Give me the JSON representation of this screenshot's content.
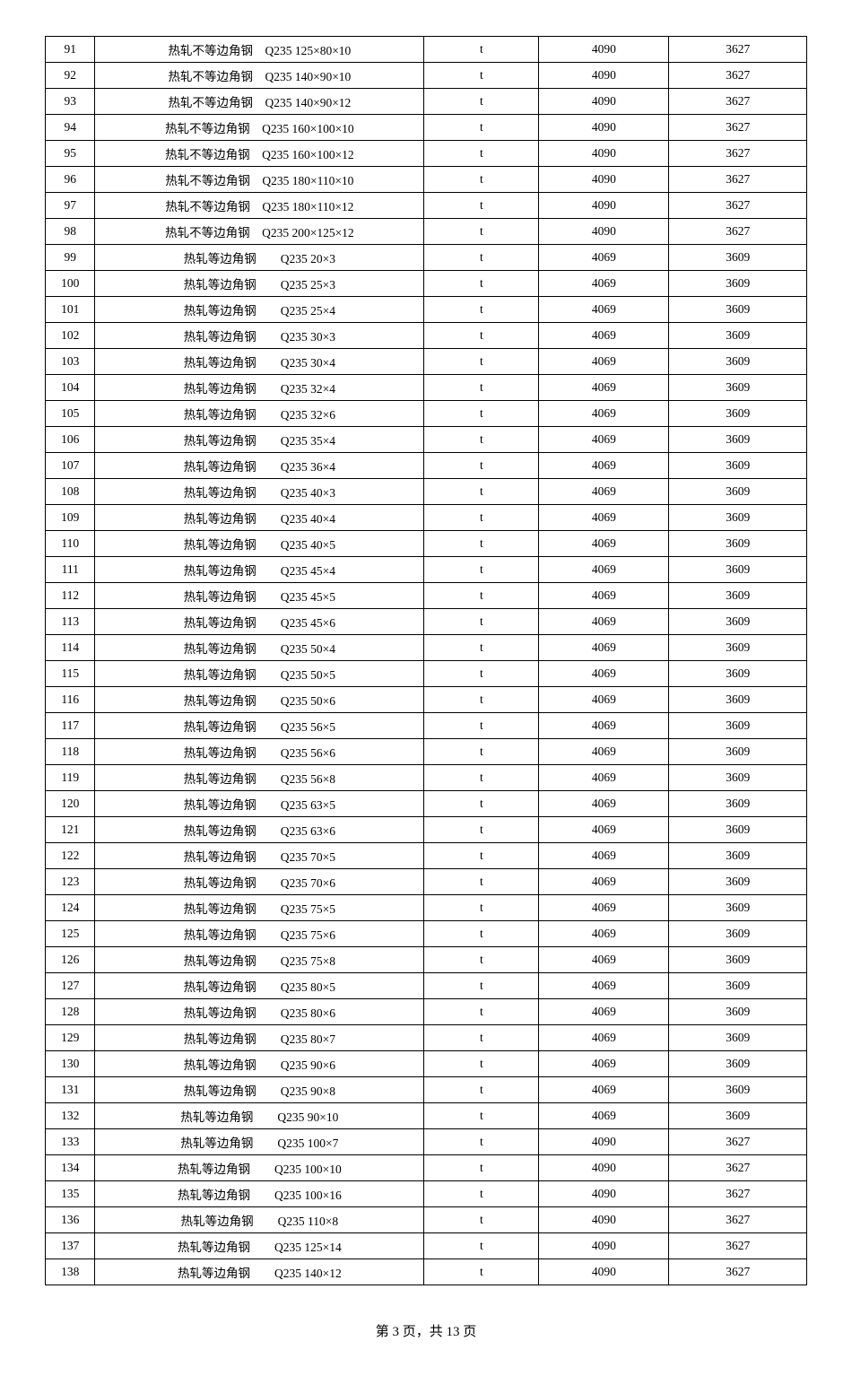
{
  "table": {
    "columns_count": 5,
    "rows": [
      {
        "n": "91",
        "desc": "热轧不等边角钢　Q235 125×80×10",
        "u": "t",
        "a": "4090",
        "b": "3627"
      },
      {
        "n": "92",
        "desc": "热轧不等边角钢　Q235 140×90×10",
        "u": "t",
        "a": "4090",
        "b": "3627"
      },
      {
        "n": "93",
        "desc": "热轧不等边角钢　Q235 140×90×12",
        "u": "t",
        "a": "4090",
        "b": "3627"
      },
      {
        "n": "94",
        "desc": "热轧不等边角钢　Q235 160×100×10",
        "u": "t",
        "a": "4090",
        "b": "3627"
      },
      {
        "n": "95",
        "desc": "热轧不等边角钢　Q235 160×100×12",
        "u": "t",
        "a": "4090",
        "b": "3627"
      },
      {
        "n": "96",
        "desc": "热轧不等边角钢　Q235 180×110×10",
        "u": "t",
        "a": "4090",
        "b": "3627"
      },
      {
        "n": "97",
        "desc": "热轧不等边角钢　Q235 180×110×12",
        "u": "t",
        "a": "4090",
        "b": "3627"
      },
      {
        "n": "98",
        "desc": "热轧不等边角钢　Q235 200×125×12",
        "u": "t",
        "a": "4090",
        "b": "3627"
      },
      {
        "n": "99",
        "desc": "热轧等边角钢　　Q235 20×3",
        "u": "t",
        "a": "4069",
        "b": "3609"
      },
      {
        "n": "100",
        "desc": "热轧等边角钢　　Q235 25×3",
        "u": "t",
        "a": "4069",
        "b": "3609"
      },
      {
        "n": "101",
        "desc": "热轧等边角钢　　Q235 25×4",
        "u": "t",
        "a": "4069",
        "b": "3609"
      },
      {
        "n": "102",
        "desc": "热轧等边角钢　　Q235 30×3",
        "u": "t",
        "a": "4069",
        "b": "3609"
      },
      {
        "n": "103",
        "desc": "热轧等边角钢　　Q235 30×4",
        "u": "t",
        "a": "4069",
        "b": "3609"
      },
      {
        "n": "104",
        "desc": "热轧等边角钢　　Q235 32×4",
        "u": "t",
        "a": "4069",
        "b": "3609"
      },
      {
        "n": "105",
        "desc": "热轧等边角钢　　Q235 32×6",
        "u": "t",
        "a": "4069",
        "b": "3609"
      },
      {
        "n": "106",
        "desc": "热轧等边角钢　　Q235 35×4",
        "u": "t",
        "a": "4069",
        "b": "3609"
      },
      {
        "n": "107",
        "desc": "热轧等边角钢　　Q235 36×4",
        "u": "t",
        "a": "4069",
        "b": "3609"
      },
      {
        "n": "108",
        "desc": "热轧等边角钢　　Q235 40×3",
        "u": "t",
        "a": "4069",
        "b": "3609"
      },
      {
        "n": "109",
        "desc": "热轧等边角钢　　Q235 40×4",
        "u": "t",
        "a": "4069",
        "b": "3609"
      },
      {
        "n": "110",
        "desc": "热轧等边角钢　　Q235 40×5",
        "u": "t",
        "a": "4069",
        "b": "3609"
      },
      {
        "n": "111",
        "desc": "热轧等边角钢　　Q235 45×4",
        "u": "t",
        "a": "4069",
        "b": "3609"
      },
      {
        "n": "112",
        "desc": "热轧等边角钢　　Q235 45×5",
        "u": "t",
        "a": "4069",
        "b": "3609"
      },
      {
        "n": "113",
        "desc": "热轧等边角钢　　Q235 45×6",
        "u": "t",
        "a": "4069",
        "b": "3609"
      },
      {
        "n": "114",
        "desc": "热轧等边角钢　　Q235 50×4",
        "u": "t",
        "a": "4069",
        "b": "3609"
      },
      {
        "n": "115",
        "desc": "热轧等边角钢　　Q235 50×5",
        "u": "t",
        "a": "4069",
        "b": "3609"
      },
      {
        "n": "116",
        "desc": "热轧等边角钢　　Q235 50×6",
        "u": "t",
        "a": "4069",
        "b": "3609"
      },
      {
        "n": "117",
        "desc": "热轧等边角钢　　Q235 56×5",
        "u": "t",
        "a": "4069",
        "b": "3609"
      },
      {
        "n": "118",
        "desc": "热轧等边角钢　　Q235 56×6",
        "u": "t",
        "a": "4069",
        "b": "3609"
      },
      {
        "n": "119",
        "desc": "热轧等边角钢　　Q235 56×8",
        "u": "t",
        "a": "4069",
        "b": "3609"
      },
      {
        "n": "120",
        "desc": "热轧等边角钢　　Q235 63×5",
        "u": "t",
        "a": "4069",
        "b": "3609"
      },
      {
        "n": "121",
        "desc": "热轧等边角钢　　Q235 63×6",
        "u": "t",
        "a": "4069",
        "b": "3609"
      },
      {
        "n": "122",
        "desc": "热轧等边角钢　　Q235 70×5",
        "u": "t",
        "a": "4069",
        "b": "3609"
      },
      {
        "n": "123",
        "desc": "热轧等边角钢　　Q235 70×6",
        "u": "t",
        "a": "4069",
        "b": "3609"
      },
      {
        "n": "124",
        "desc": "热轧等边角钢　　Q235 75×5",
        "u": "t",
        "a": "4069",
        "b": "3609"
      },
      {
        "n": "125",
        "desc": "热轧等边角钢　　Q235 75×6",
        "u": "t",
        "a": "4069",
        "b": "3609"
      },
      {
        "n": "126",
        "desc": "热轧等边角钢　　Q235 75×8",
        "u": "t",
        "a": "4069",
        "b": "3609"
      },
      {
        "n": "127",
        "desc": "热轧等边角钢　　Q235 80×5",
        "u": "t",
        "a": "4069",
        "b": "3609"
      },
      {
        "n": "128",
        "desc": "热轧等边角钢　　Q235 80×6",
        "u": "t",
        "a": "4069",
        "b": "3609"
      },
      {
        "n": "129",
        "desc": "热轧等边角钢　　Q235 80×7",
        "u": "t",
        "a": "4069",
        "b": "3609"
      },
      {
        "n": "130",
        "desc": "热轧等边角钢　　Q235 90×6",
        "u": "t",
        "a": "4069",
        "b": "3609"
      },
      {
        "n": "131",
        "desc": "热轧等边角钢　　Q235 90×8",
        "u": "t",
        "a": "4069",
        "b": "3609"
      },
      {
        "n": "132",
        "desc": "热轧等边角钢　　Q235 90×10",
        "u": "t",
        "a": "4069",
        "b": "3609"
      },
      {
        "n": "133",
        "desc": "热轧等边角钢　　Q235 100×7",
        "u": "t",
        "a": "4090",
        "b": "3627"
      },
      {
        "n": "134",
        "desc": "热轧等边角钢　　Q235 100×10",
        "u": "t",
        "a": "4090",
        "b": "3627"
      },
      {
        "n": "135",
        "desc": "热轧等边角钢　　Q235 100×16",
        "u": "t",
        "a": "4090",
        "b": "3627"
      },
      {
        "n": "136",
        "desc": "热轧等边角钢　　Q235 110×8",
        "u": "t",
        "a": "4090",
        "b": "3627"
      },
      {
        "n": "137",
        "desc": "热轧等边角钢　　Q235 125×14",
        "u": "t",
        "a": "4090",
        "b": "3627"
      },
      {
        "n": "138",
        "desc": "热轧等边角钢　　Q235 140×12",
        "u": "t",
        "a": "4090",
        "b": "3627"
      }
    ]
  },
  "footer": "第 3 页，共 13 页"
}
